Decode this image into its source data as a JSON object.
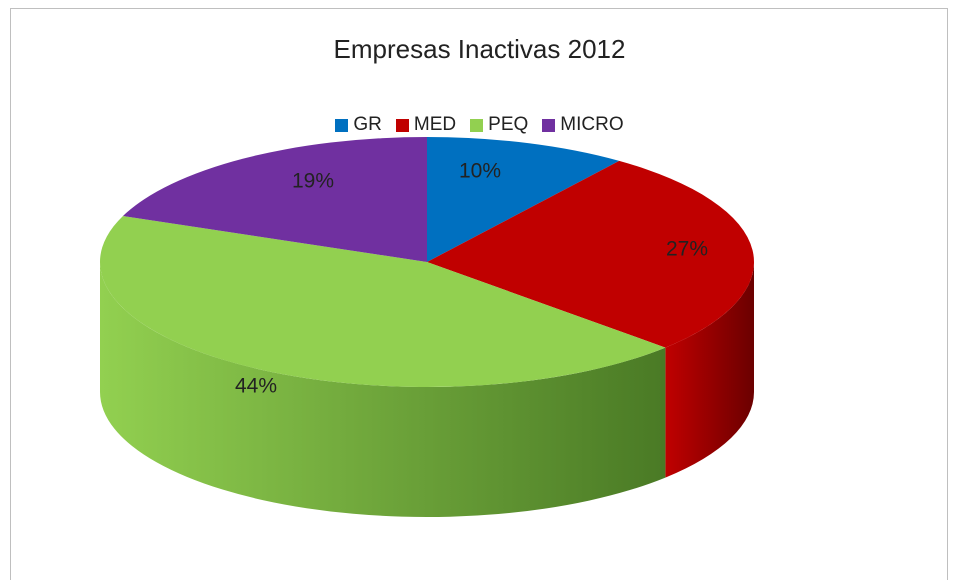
{
  "chart_data": {
    "type": "pie",
    "title": "Empresas Inactivas 2012",
    "legend_position": "top",
    "categories": [
      "GR",
      "MED",
      "PEQ",
      "MICRO"
    ],
    "values": [
      10,
      27,
      44,
      19
    ],
    "labels": [
      "10%",
      "27%",
      "44%",
      "19%"
    ],
    "colors": [
      "#0070c0",
      "#c00000",
      "#92d050",
      "#7030a0"
    ],
    "side_colors": [
      "#003a66",
      "#6b0000",
      "#4a7a25",
      "#3e1a5c"
    ],
    "style": "3d"
  }
}
